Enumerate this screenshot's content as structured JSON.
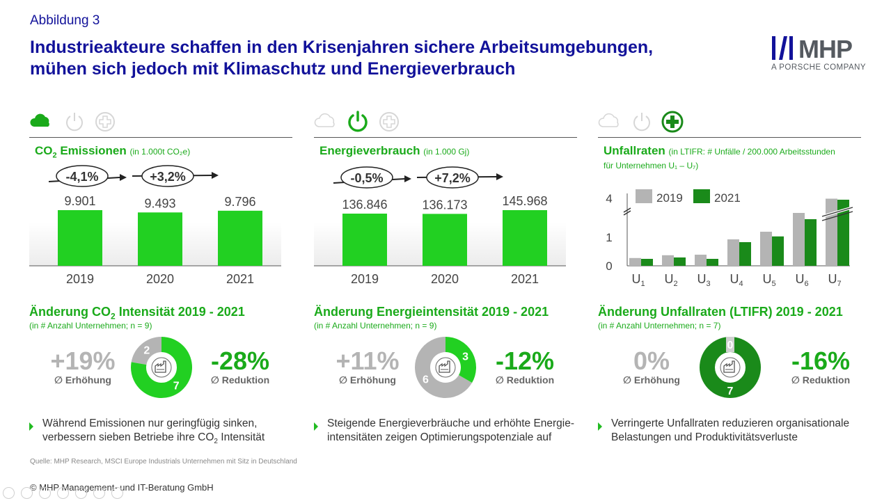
{
  "header": {
    "figure_label": "Abbildung 3",
    "title_line1": "Industrieakteure schaffen in den Krisenjahren sichere Arbeitsumgebungen,",
    "title_line2": "mühen sich jedoch mit Klimaschutz und Energieverbrauch"
  },
  "logo": {
    "text": "MHP",
    "sub": "A PORSCHE COMPANY"
  },
  "colors": {
    "green": "#1aaa1a",
    "bright_green": "#22d022",
    "dark_green": "#1a8a1a",
    "grey": "#b4b4b4",
    "navy": "#12129a"
  },
  "panels": [
    {
      "icons": [
        "cloud-icon",
        "power-icon",
        "plus-circle-icon"
      ],
      "active_icon": 0,
      "title_main": "CO",
      "title_sub": "2",
      "title_rest": " Emissionen",
      "title_unit": "(in 1.000t CO₂e)",
      "change1": "-4,1%",
      "change2": "+3,2%",
      "change_title_a": "Änderung CO",
      "change_title_sub": "2",
      "change_title_b": " Intensität 2019 - 2021",
      "change_sub": "(in # Anzahl Unternehmen; n = 9)",
      "increase_value": "+19%",
      "increase_label": "∅ Erhöhung",
      "decrease_value": "-28%",
      "decrease_label": "∅ Reduktion",
      "donut_increase_count": "2",
      "donut_decrease_count": "7",
      "bullet_line1": "Während Emissionen nur geringfügig sinken,",
      "bullet_line2a": "verbessern sieben Betriebe ihre CO",
      "bullet_line2_sub": "2",
      "bullet_line2b": " Intensität"
    },
    {
      "icons": [
        "cloud-icon",
        "power-icon",
        "plus-circle-icon"
      ],
      "active_icon": 1,
      "title_main": "Energieverbrauch",
      "title_unit": "(in 1.000 Gj)",
      "change1": "-0,5%",
      "change2": "+7,2%",
      "change_title": "Änderung Energieintensität 2019 - 2021",
      "change_sub": "(in # Anzahl Unternehmen; n = 9)",
      "increase_value": "+11%",
      "increase_label": "∅ Erhöhung",
      "decrease_value": "-12%",
      "decrease_label": "∅ Reduktion",
      "donut_increase_count": "6",
      "donut_decrease_count": "3",
      "bullet_line1": "Steigende Energieverbräuche und erhöhte Energie-",
      "bullet_line2": "intensitäten zeigen Optimierungspotenziale auf"
    },
    {
      "icons": [
        "cloud-icon",
        "power-icon",
        "plus-circle-icon"
      ],
      "active_icon": 2,
      "title_main": "Unfallraten",
      "title_unit": "(in LTIFR: # Unfälle / 200.000 Arbeitsstunden",
      "title_unit2": "für Unternehmen U₁ – U₇)",
      "change_title": "Änderung Unfallraten (LTIFR) 2019 - 2021",
      "change_sub": "(in # Anzahl Unternehmen; n = 7)",
      "increase_value": "0%",
      "increase_label": "∅ Erhöhung",
      "decrease_value": "-16%",
      "decrease_label": "∅ Reduktion",
      "donut_increase_count": "0",
      "donut_decrease_count": "7",
      "bullet_line1": "Verringerte Unfallraten reduzieren organisationale",
      "bullet_line2": "Belastungen und Produktivitätsverluste"
    }
  ],
  "chart_data": [
    {
      "type": "bar",
      "title": "CO₂ Emissionen",
      "categories": [
        "2019",
        "2020",
        "2021"
      ],
      "values": [
        9901,
        9493,
        9796
      ],
      "labels": [
        "9.901",
        "9.493",
        "9.796"
      ]
    },
    {
      "type": "bar",
      "title": "Energieverbrauch",
      "categories": [
        "2019",
        "2020",
        "2021"
      ],
      "values": [
        136846,
        136173,
        145968
      ],
      "labels": [
        "136.846",
        "136.173",
        "145.968"
      ]
    },
    {
      "type": "bar",
      "title": "Unfallraten",
      "categories": [
        "U1",
        "U2",
        "U3",
        "U4",
        "U5",
        "U6",
        "U7"
      ],
      "series": [
        {
          "name": "2019",
          "values": [
            0.28,
            0.38,
            0.4,
            0.95,
            1.2,
            1.8,
            4.3
          ]
        },
        {
          "name": "2021",
          "values": [
            0.25,
            0.3,
            0.25,
            0.85,
            1.05,
            1.6,
            4.0
          ]
        }
      ],
      "yticks": [
        "0",
        "1",
        "4"
      ],
      "axis_break": true
    },
    {
      "type": "pie",
      "title": "Änderung CO₂ Intensität 2019 - 2021",
      "labels": [
        "Erhöhung",
        "Reduktion"
      ],
      "values": [
        2,
        7
      ]
    },
    {
      "type": "pie",
      "title": "Änderung Energieintensität 2019 - 2021",
      "labels": [
        "Erhöhung",
        "Reduktion"
      ],
      "values": [
        6,
        3
      ]
    },
    {
      "type": "pie",
      "title": "Änderung Unfallraten (LTIFR) 2019 - 2021",
      "labels": [
        "Erhöhung",
        "Reduktion"
      ],
      "values": [
        0,
        7
      ]
    }
  ],
  "footer": {
    "source": "Quelle: MHP Research, MSCI Europe Industrials Unternehmen mit Sitz in Deutschland",
    "copyright": "© MHP Management- und IT-Beratung GmbH"
  }
}
